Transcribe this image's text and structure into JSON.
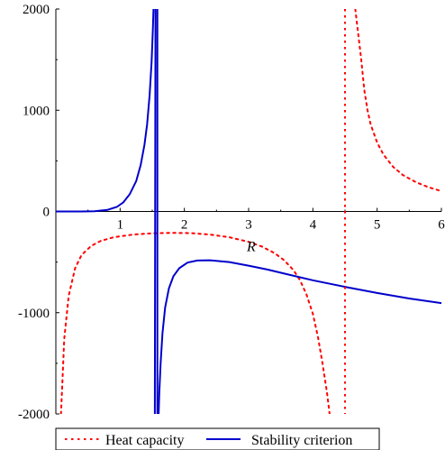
{
  "chart_data": {
    "type": "line",
    "xlabel": "R",
    "ylabel": "",
    "xlim": [
      0,
      6
    ],
    "ylim": [
      -2000,
      2000
    ],
    "xticks": [
      "1",
      "2",
      "3",
      "4",
      "5",
      "6"
    ],
    "yticks": [
      "2000",
      "1000",
      "0",
      "-1000",
      "-2000"
    ],
    "grid": false,
    "legend_position": "bottom",
    "series": [
      {
        "name": "Heat capacity",
        "style": "dotted",
        "color": "#ff0000",
        "segments": [
          [
            [
              0.08,
              -2000
            ],
            [
              0.1,
              -1720
            ],
            [
              0.13,
              -1260
            ],
            [
              0.2,
              -830
            ],
            [
              0.3,
              -560
            ],
            [
              0.4,
              -430
            ],
            [
              0.55,
              -340
            ],
            [
              0.7,
              -290
            ],
            [
              0.9,
              -255
            ],
            [
              1.2,
              -228
            ],
            [
              1.5,
              -216
            ],
            [
              1.8,
              -211
            ],
            [
              2.1,
              -214
            ],
            [
              2.4,
              -228
            ],
            [
              2.7,
              -255
            ],
            [
              3.0,
              -300
            ],
            [
              3.2,
              -345
            ],
            [
              3.4,
              -410
            ],
            [
              3.55,
              -480
            ],
            [
              3.7,
              -580
            ],
            [
              3.8,
              -680
            ],
            [
              3.9,
              -820
            ],
            [
              4.0,
              -1010
            ],
            [
              4.08,
              -1240
            ],
            [
              4.15,
              -1500
            ],
            [
              4.22,
              -1790
            ],
            [
              4.26,
              -2000
            ]
          ],
          [
            [
              4.66,
              2000
            ],
            [
              4.7,
              1780
            ],
            [
              4.75,
              1520
            ],
            [
              4.8,
              1200
            ],
            [
              4.85,
              1000
            ],
            [
              4.9,
              860
            ],
            [
              5.0,
              680
            ],
            [
              5.1,
              560
            ],
            [
              5.25,
              440
            ],
            [
              5.4,
              360
            ],
            [
              5.6,
              290
            ],
            [
              5.8,
              240
            ],
            [
              6.0,
              200
            ]
          ]
        ]
      },
      {
        "name": "Stability criterion",
        "style": "solid",
        "color": "#0000cc",
        "segments": [
          [
            [
              0,
              0
            ],
            [
              0.4,
              0
            ],
            [
              0.6,
              3
            ],
            [
              0.8,
              15
            ],
            [
              0.95,
              45
            ],
            [
              1.05,
              90
            ],
            [
              1.15,
              170
            ],
            [
              1.25,
              300
            ],
            [
              1.32,
              460
            ],
            [
              1.38,
              660
            ],
            [
              1.42,
              860
            ],
            [
              1.46,
              1150
            ],
            [
              1.49,
              1480
            ],
            [
              1.51,
              1800
            ],
            [
              1.52,
              2000
            ]
          ],
          [
            [
              1.54,
              -2000
            ],
            [
              1.55,
              2000
            ]
          ],
          [
            [
              1.58,
              2000
            ],
            [
              1.58,
              -2000
            ]
          ],
          [
            [
              1.6,
              -2000
            ],
            [
              1.61,
              -1800
            ],
            [
              1.63,
              -1500
            ],
            [
              1.66,
              -1200
            ],
            [
              1.7,
              -950
            ],
            [
              1.76,
              -760
            ],
            [
              1.83,
              -640
            ],
            [
              1.92,
              -560
            ],
            [
              2.05,
              -505
            ],
            [
              2.2,
              -485
            ],
            [
              2.4,
              -482
            ],
            [
              2.7,
              -500
            ],
            [
              3.0,
              -535
            ],
            [
              3.3,
              -575
            ],
            [
              3.6,
              -620
            ],
            [
              4.0,
              -680
            ],
            [
              4.5,
              -745
            ],
            [
              5.0,
              -805
            ],
            [
              5.5,
              -860
            ],
            [
              6.0,
              -905
            ]
          ]
        ]
      }
    ],
    "asymptotes": [
      {
        "series": "Heat capacity",
        "x": 4.5,
        "style": "dotted",
        "color": "#ff0000"
      }
    ]
  }
}
